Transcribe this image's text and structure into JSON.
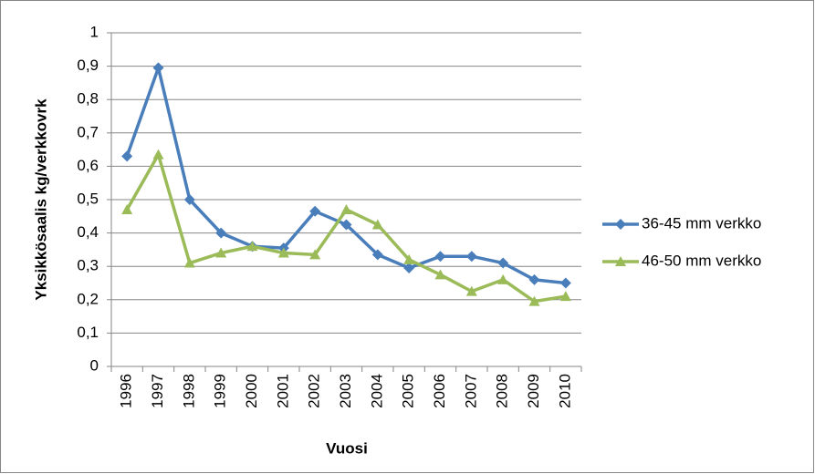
{
  "chart_data": {
    "type": "line",
    "x_label": "Vuosi",
    "y_label": "Yksikkösaalis kg/verkkovrk",
    "categories": [
      "1996",
      "1997",
      "1998",
      "1999",
      "2000",
      "2001",
      "2002",
      "2003",
      "2004",
      "2005",
      "2006",
      "2007",
      "2008",
      "2009",
      "2010"
    ],
    "series": [
      {
        "name": "36-45 mm verkko",
        "color": "#4a7ebb",
        "marker": "diamond",
        "values": [
          0.63,
          0.895,
          0.5,
          0.4,
          0.36,
          0.355,
          0.465,
          0.425,
          0.335,
          0.295,
          0.33,
          0.33,
          0.31,
          0.26,
          0.25
        ]
      },
      {
        "name": "46-50 mm verkko",
        "color": "#9bbb59",
        "marker": "triangle",
        "values": [
          0.47,
          0.635,
          0.31,
          0.34,
          0.36,
          0.34,
          0.335,
          0.47,
          0.425,
          0.32,
          0.275,
          0.225,
          0.26,
          0.195,
          0.21
        ]
      }
    ],
    "ylim": [
      0,
      1
    ],
    "yticks": [
      0,
      {
        "value": 0.1,
        "label": "0,1"
      },
      {
        "value": 0.2,
        "label": "0,2"
      },
      {
        "value": 0.3,
        "label": "0,3"
      },
      {
        "value": 0.4,
        "label": "0,4"
      },
      {
        "value": 0.5,
        "label": "0,5"
      },
      {
        "value": 0.6,
        "label": "0,6"
      },
      {
        "value": 0.7,
        "label": "0,7"
      },
      {
        "value": 0.8,
        "label": "0,8"
      },
      {
        "value": 0.9,
        "label": "0,9"
      },
      1
    ],
    "grid": true,
    "legend": "right"
  }
}
